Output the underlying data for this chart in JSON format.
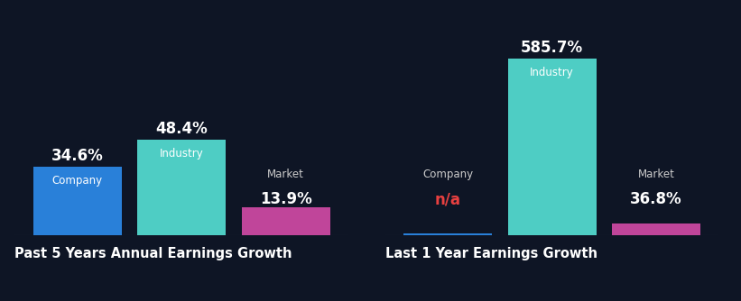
{
  "background_color": "#0e1525",
  "left_chart": {
    "title": "Past 5 Years Annual Earnings Growth",
    "bars": [
      {
        "label": "Company",
        "value": 34.6,
        "color": "#2980d9",
        "display": "34.6%",
        "display_color": "#ffffff"
      },
      {
        "label": "Industry",
        "value": 48.4,
        "color": "#4ecdc4",
        "display": "48.4%",
        "display_color": "#ffffff"
      },
      {
        "label": "Market",
        "value": 13.9,
        "color": "#c0459a",
        "display": "13.9%",
        "display_color": "#ffffff"
      }
    ],
    "ylim_max": 100
  },
  "right_chart": {
    "title": "Last 1 Year Earnings Growth",
    "bars": [
      {
        "label": "Company",
        "value": 0,
        "color": "#2980d9",
        "display": "n/a",
        "display_color": "#e84040"
      },
      {
        "label": "Industry",
        "value": 585.7,
        "color": "#4ecdc4",
        "display": "585.7%",
        "display_color": "#ffffff"
      },
      {
        "label": "Market",
        "value": 36.8,
        "color": "#c0459a",
        "display": "36.8%",
        "display_color": "#ffffff"
      }
    ],
    "ylim_max": 650
  },
  "label_color": "#cccccc",
  "value_color": "#ffffff",
  "title_color": "#ffffff",
  "title_fontsize": 10.5,
  "label_fontsize": 8.5,
  "value_fontsize": 12,
  "bar_width": 0.85,
  "baseline_color": "#444455"
}
